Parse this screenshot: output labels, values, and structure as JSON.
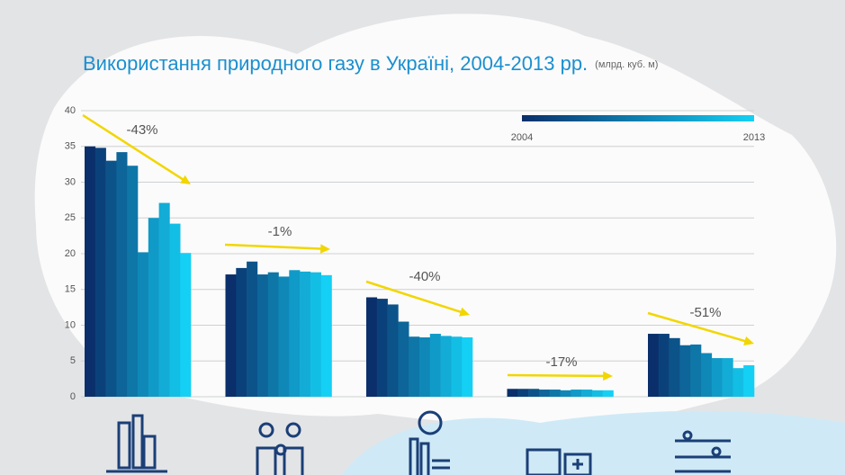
{
  "chart_data": {
    "type": "bar",
    "title": "Використання природного газу в Україні, 2004-2013 рр.",
    "unit": "(млрд. куб. м)",
    "categories": [
      null,
      null,
      null,
      null,
      null
    ],
    "series": [
      {
        "color": "#0a2f6b",
        "values": [
          35,
          17.1,
          13.9,
          1.1,
          8.8
        ]
      },
      {
        "color": "#0b417a",
        "values": [
          34.8,
          18,
          13.7,
          1.1,
          8.8
        ]
      },
      {
        "color": "#0c538a",
        "values": [
          33,
          18.9,
          12.9,
          1.1,
          8.2
        ]
      },
      {
        "color": "#0d6599",
        "values": [
          34.2,
          17.1,
          10.5,
          1.0,
          7.2
        ]
      },
      {
        "color": "#0e77a8",
        "values": [
          32.3,
          17.4,
          8.4,
          1.0,
          7.3
        ]
      },
      {
        "color": "#0f88b8",
        "values": [
          20.2,
          16.8,
          8.3,
          0.9,
          6.1
        ]
      },
      {
        "color": "#109ac7",
        "values": [
          25,
          17.7,
          8.8,
          1.0,
          5.4
        ]
      },
      {
        "color": "#12acd6",
        "values": [
          27.1,
          17.5,
          8.5,
          1.0,
          5.4
        ]
      },
      {
        "color": "#13bee5",
        "values": [
          24.2,
          17.4,
          8.4,
          0.9,
          4.0
        ]
      },
      {
        "color": "#14d0f5",
        "values": [
          20.1,
          17.0,
          8.3,
          0.9,
          4.4
        ]
      }
    ],
    "legend": {
      "start": "2004",
      "end": "2013"
    },
    "annotations": [
      "-43%",
      "-1%",
      "-40%",
      "-17%",
      "-51%"
    ],
    "arrow_color": "#f2d600",
    "ylim": [
      0,
      40
    ],
    "yticks": [
      0,
      5,
      10,
      15,
      20,
      25,
      30,
      35,
      40
    ],
    "grid": true
  }
}
